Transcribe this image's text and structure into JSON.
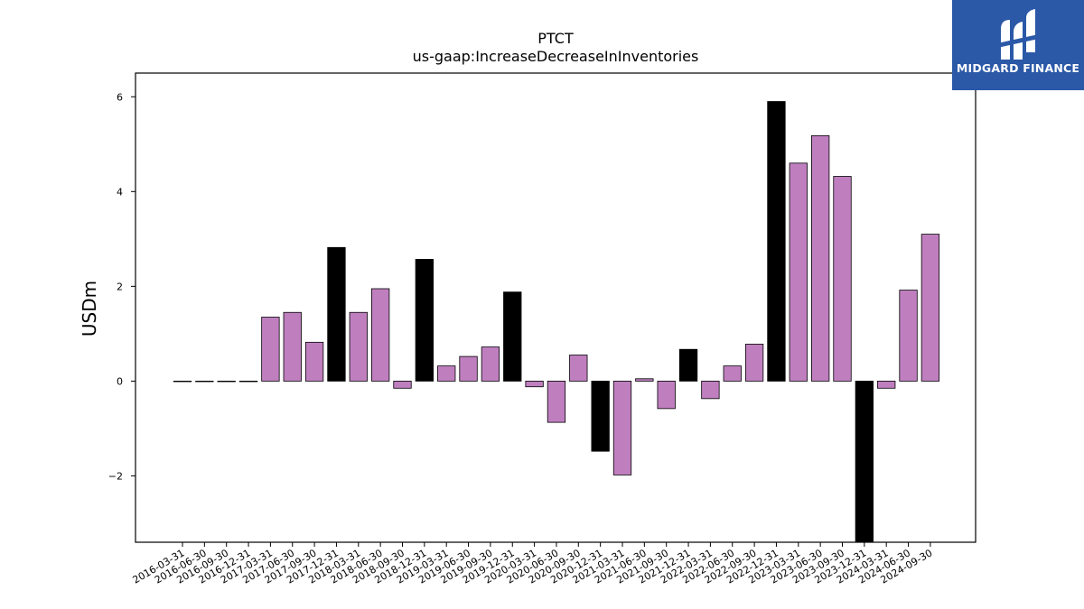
{
  "colors": {
    "default_bar": "#bf7fbf",
    "highlight_bar": "#000000",
    "axis": "#000000",
    "logo_bg": "#2b58a7"
  },
  "logo": {
    "text": "MIDGARD FINANCE",
    "icon": "midgard-logo-icon"
  },
  "chart_data": {
    "type": "bar",
    "title": "PTCT",
    "subtitle": "us-gaap:IncreaseDecreaseInInventories",
    "xlabel": "",
    "ylabel": "USDm",
    "ylim": [
      -3.4,
      6.5
    ],
    "yticks": [
      -2,
      0,
      2,
      4,
      6
    ],
    "ytick_labels": [
      "−2",
      "0",
      "2",
      "4",
      "6"
    ],
    "grid": false,
    "legend": "none",
    "categories": [
      "2016-03-31",
      "2016-06-30",
      "2016-09-30",
      "2016-12-31",
      "2017-03-31",
      "2017-06-30",
      "2017-09-30",
      "2017-12-31",
      "2018-03-31",
      "2018-06-30",
      "2018-09-30",
      "2018-12-31",
      "2019-03-31",
      "2019-06-30",
      "2019-09-30",
      "2019-12-31",
      "2020-03-31",
      "2020-06-30",
      "2020-09-30",
      "2020-12-31",
      "2021-03-31",
      "2021-06-30",
      "2021-09-30",
      "2021-12-31",
      "2022-03-31",
      "2022-06-30",
      "2022-09-30",
      "2022-12-31",
      "2023-03-31",
      "2023-06-30",
      "2023-09-30",
      "2023-12-31",
      "2024-03-31",
      "2024-06-30",
      "2024-09-30"
    ],
    "values": [
      0,
      0,
      0,
      0,
      1.35,
      1.45,
      0.82,
      2.82,
      1.45,
      1.95,
      -0.15,
      2.57,
      0.32,
      0.52,
      0.72,
      1.88,
      -0.12,
      -0.87,
      0.55,
      -1.48,
      -1.98,
      0.05,
      -0.58,
      0.67,
      -0.37,
      0.32,
      0.78,
      5.9,
      4.6,
      5.18,
      4.32,
      -3.4,
      -0.15,
      1.92,
      3.1
    ],
    "highlight_indices": [
      7,
      11,
      15,
      19,
      23,
      27,
      31
    ]
  }
}
